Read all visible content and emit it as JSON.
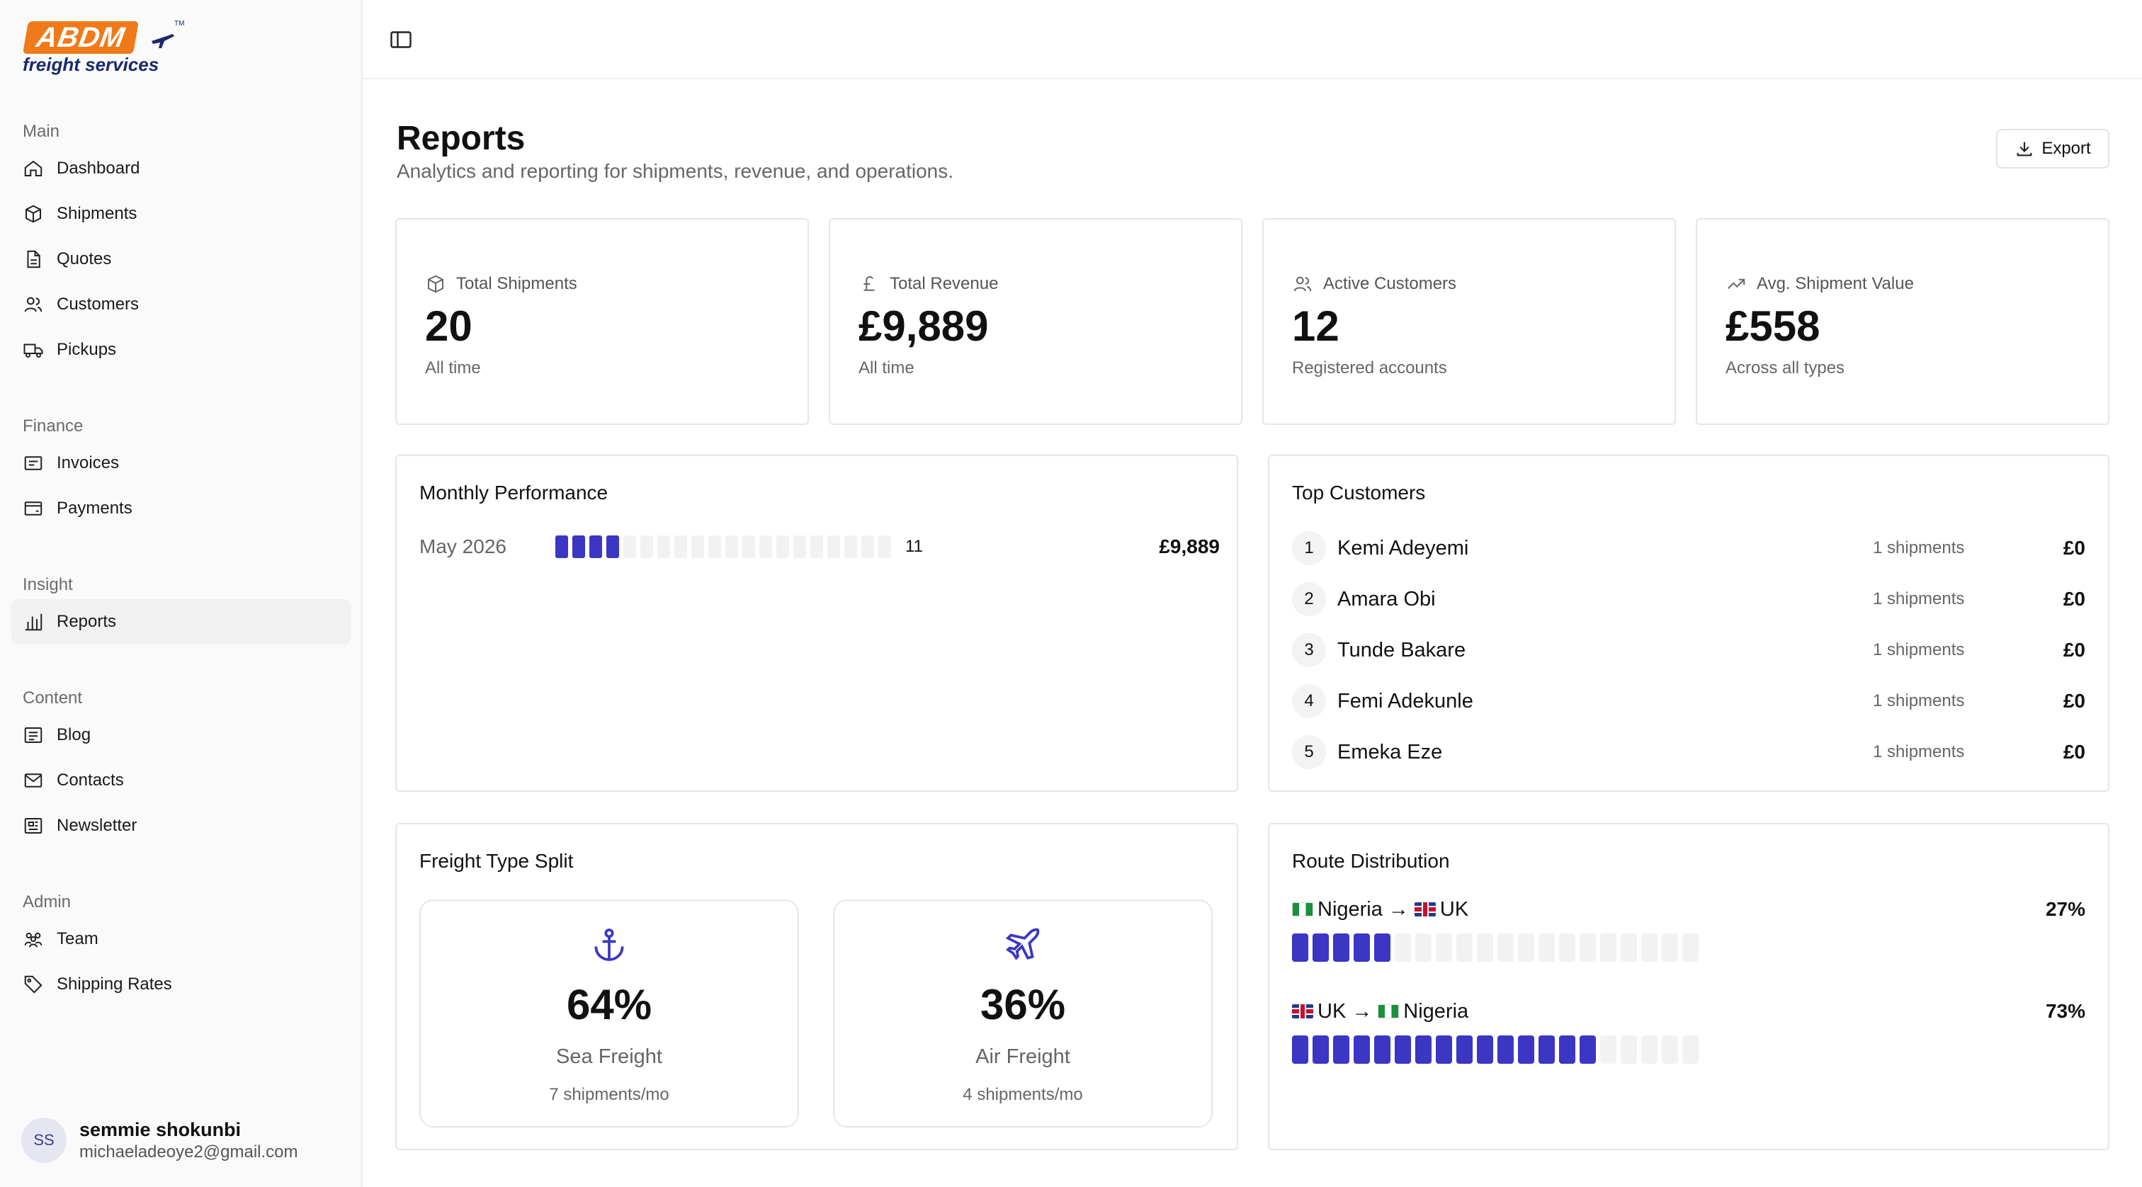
{
  "brand": {
    "badge": "ABDM",
    "subtitle": "freight services",
    "tm": "TM"
  },
  "sidebar": {
    "groups": [
      {
        "heading": "Main",
        "items": [
          {
            "label": "Dashboard",
            "icon": "home-icon"
          },
          {
            "label": "Shipments",
            "icon": "box-icon"
          },
          {
            "label": "Quotes",
            "icon": "document-icon"
          },
          {
            "label": "Customers",
            "icon": "users-icon"
          },
          {
            "label": "Pickups",
            "icon": "truck-icon"
          }
        ]
      },
      {
        "heading": "Finance",
        "items": [
          {
            "label": "Invoices",
            "icon": "receipt-icon"
          },
          {
            "label": "Payments",
            "icon": "wallet-icon"
          }
        ]
      },
      {
        "heading": "Insight",
        "items": [
          {
            "label": "Reports",
            "icon": "bar-chart-icon",
            "active": true
          }
        ]
      },
      {
        "heading": "Content",
        "items": [
          {
            "label": "Blog",
            "icon": "article-icon"
          },
          {
            "label": "Contacts",
            "icon": "mail-icon"
          },
          {
            "label": "Newsletter",
            "icon": "newspaper-icon"
          }
        ]
      },
      {
        "heading": "Admin",
        "items": [
          {
            "label": "Team",
            "icon": "team-icon"
          },
          {
            "label": "Shipping Rates",
            "icon": "tag-icon"
          }
        ]
      }
    ]
  },
  "user": {
    "initials": "SS",
    "name": "semmie shokunbi",
    "email": "michaeladeoye2@gmail.com"
  },
  "page": {
    "title": "Reports",
    "subtitle": "Analytics and reporting for shipments, revenue, and operations.",
    "export_label": "Export"
  },
  "stats": [
    {
      "label": "Total Shipments",
      "value": "20",
      "sub": "All time",
      "icon": "box-icon"
    },
    {
      "label": "Total Revenue",
      "value": "£9,889",
      "sub": "All time",
      "icon": "pound-icon"
    },
    {
      "label": "Active Customers",
      "value": "12",
      "sub": "Registered accounts",
      "icon": "users-icon"
    },
    {
      "label": "Avg. Shipment Value",
      "value": "£558",
      "sub": "Across all types",
      "icon": "trend-up-icon"
    }
  ],
  "monthly": {
    "title": "Monthly Performance",
    "rows": [
      {
        "month": "May 2026",
        "count": "11",
        "revenue": "£9,889",
        "filled_segments": 4,
        "total_segments": 20
      }
    ]
  },
  "top_customers": {
    "title": "Top Customers",
    "rows": [
      {
        "rank": "1",
        "name": "Kemi Adeyemi",
        "shipments": "1 shipments",
        "revenue": "£0"
      },
      {
        "rank": "2",
        "name": "Amara Obi",
        "shipments": "1 shipments",
        "revenue": "£0"
      },
      {
        "rank": "3",
        "name": "Tunde Bakare",
        "shipments": "1 shipments",
        "revenue": "£0"
      },
      {
        "rank": "4",
        "name": "Femi Adekunle",
        "shipments": "1 shipments",
        "revenue": "£0"
      },
      {
        "rank": "5",
        "name": "Emeka Eze",
        "shipments": "1 shipments",
        "revenue": "£0"
      }
    ]
  },
  "freight_split": {
    "title": "Freight Type Split",
    "types": [
      {
        "pct": "64%",
        "name": "Sea Freight",
        "sub": "7 shipments/mo",
        "icon": "anchor-icon"
      },
      {
        "pct": "36%",
        "name": "Air Freight",
        "sub": "4 shipments/mo",
        "icon": "plane-icon"
      }
    ]
  },
  "routes": {
    "title": "Route Distribution",
    "accent": "#3b36c4",
    "items": [
      {
        "from": "Nigeria",
        "to": "UK",
        "from_flag": "ng",
        "to_flag": "uk",
        "arrow": "→",
        "pct": "27%",
        "share": 0.27,
        "total_segments": 20
      },
      {
        "from": "UK",
        "to": "Nigeria",
        "from_flag": "uk",
        "to_flag": "ng",
        "arrow": "→",
        "pct": "73%",
        "share": 0.73,
        "total_segments": 20
      }
    ]
  }
}
